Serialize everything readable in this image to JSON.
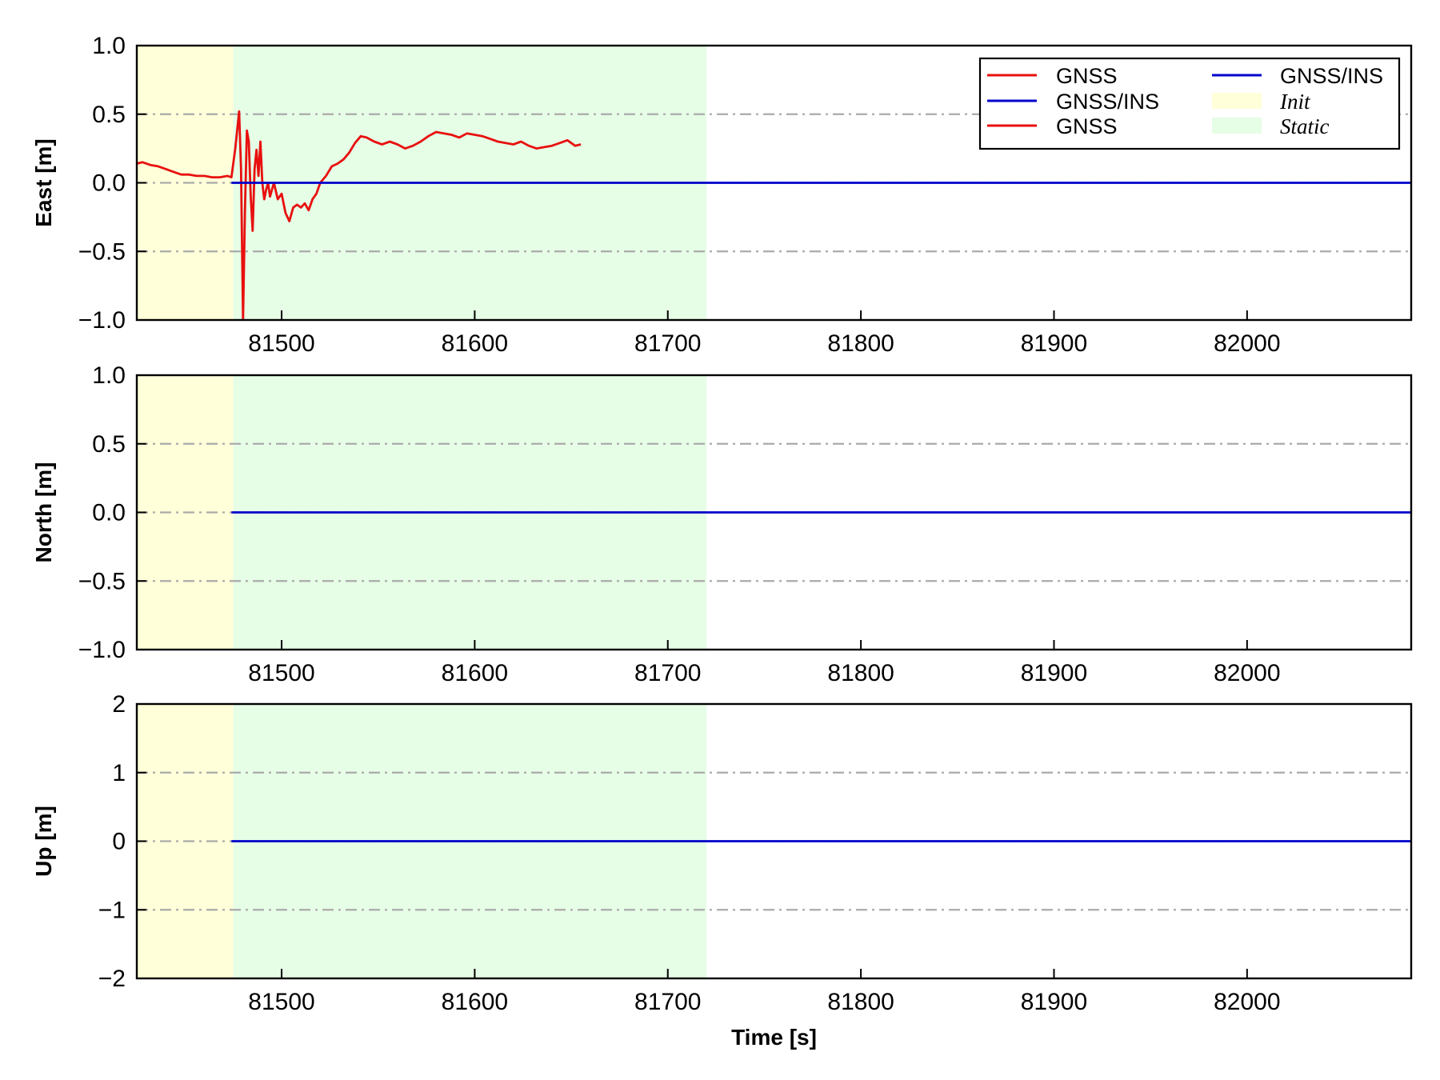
{
  "chart_data": [
    {
      "type": "line",
      "ylabel": "East [m]",
      "xlabel": "",
      "xlim": [
        81425,
        82085
      ],
      "ylim": [
        -1.0,
        1.0
      ],
      "xticks": [
        81500,
        81600,
        81700,
        81800,
        81900,
        82000
      ],
      "xtick_labels": [
        "81500",
        "81600",
        "81700",
        "81800",
        "81900",
        "82000"
      ],
      "yticks": [
        -1.0,
        -0.5,
        0.0,
        0.5,
        1.0
      ],
      "ytick_labels": [
        "−1.0",
        "−0.5",
        "0.0",
        "0.5",
        "1.0"
      ],
      "grid": true,
      "legend_position": "top-right",
      "spans": [
        {
          "name": "Init",
          "start": 81425,
          "end": 81475,
          "color": "#ffffd9"
        },
        {
          "name": "Static",
          "start": 81475,
          "end": 81720,
          "color": "#e6fde6"
        }
      ],
      "legend": [
        {
          "label": "GNSS",
          "kind": "line",
          "color": "#e8100f"
        },
        {
          "label": "GNSS/INS",
          "kind": "line",
          "color": "#0000cc"
        },
        {
          "label": "GNSS",
          "kind": "line",
          "color": "#e8100f"
        },
        {
          "label": "GNSS/INS",
          "kind": "line",
          "color": "#0000cc"
        },
        {
          "label": "Init",
          "kind": "patch",
          "color": "#ffffd9"
        },
        {
          "label": "Static",
          "kind": "patch",
          "color": "#e6fde6"
        }
      ],
      "series": [
        {
          "name": "GNSS",
          "color": "#e8100f",
          "x": [
            81425,
            81428,
            81432,
            81436,
            81440,
            81444,
            81448,
            81452,
            81456,
            81460,
            81464,
            81468,
            81472,
            81474,
            81476,
            81478,
            81479,
            81480,
            81481,
            81482,
            81483,
            81484,
            81485,
            81486,
            81487,
            81488,
            81489,
            81490,
            81491,
            81492,
            81493,
            81494,
            81496,
            81498,
            81500,
            81502,
            81504,
            81506,
            81508,
            81510,
            81512,
            81514,
            81516,
            81518,
            81520,
            81523,
            81526,
            81529,
            81532,
            81535,
            81538,
            81541,
            81544,
            81548,
            81552,
            81556,
            81560,
            81564,
            81568,
            81572,
            81576,
            81580,
            81584,
            81588,
            81592,
            81596,
            81600,
            81604,
            81608,
            81612,
            81616,
            81620,
            81624,
            81628,
            81632,
            81636,
            81640,
            81644,
            81648,
            81652,
            81655
          ],
          "y": [
            0.14,
            0.15,
            0.13,
            0.12,
            0.1,
            0.08,
            0.06,
            0.06,
            0.05,
            0.05,
            0.04,
            0.04,
            0.05,
            0.04,
            0.25,
            0.52,
            0.1,
            -1.0,
            -0.2,
            0.38,
            0.3,
            -0.1,
            -0.35,
            0.1,
            0.24,
            0.05,
            0.3,
            0.0,
            -0.12,
            -0.05,
            0.0,
            -0.1,
            0.0,
            -0.12,
            -0.08,
            -0.22,
            -0.28,
            -0.18,
            -0.16,
            -0.18,
            -0.15,
            -0.2,
            -0.12,
            -0.08,
            0.0,
            0.05,
            0.12,
            0.14,
            0.17,
            0.22,
            0.29,
            0.34,
            0.33,
            0.3,
            0.28,
            0.3,
            0.28,
            0.25,
            0.27,
            0.3,
            0.34,
            0.37,
            0.36,
            0.35,
            0.33,
            0.36,
            0.35,
            0.34,
            0.32,
            0.3,
            0.29,
            0.28,
            0.3,
            0.27,
            0.25,
            0.26,
            0.27,
            0.29,
            0.31,
            0.27,
            0.28
          ]
        },
        {
          "name": "GNSS/INS",
          "color": "#0000cc",
          "x": [
            81474,
            82085
          ],
          "y": [
            0.0,
            0.0
          ]
        }
      ]
    },
    {
      "type": "line",
      "ylabel": "North [m]",
      "xlabel": "",
      "xlim": [
        81425,
        82085
      ],
      "ylim": [
        -1.0,
        1.0
      ],
      "xticks": [
        81500,
        81600,
        81700,
        81800,
        81900,
        82000
      ],
      "xtick_labels": [
        "81500",
        "81600",
        "81700",
        "81800",
        "81900",
        "82000"
      ],
      "yticks": [
        -1.0,
        -0.5,
        0.0,
        0.5,
        1.0
      ],
      "ytick_labels": [
        "−1.0",
        "−0.5",
        "0.0",
        "0.5",
        "1.0"
      ],
      "grid": true,
      "spans": [
        {
          "name": "Init",
          "start": 81425,
          "end": 81475,
          "color": "#ffffd9"
        },
        {
          "name": "Static",
          "start": 81475,
          "end": 81720,
          "color": "#e6fde6"
        }
      ],
      "series": [
        {
          "name": "GNSS/INS",
          "color": "#0000cc",
          "x": [
            81474,
            82085
          ],
          "y": [
            0.0,
            0.0
          ]
        }
      ]
    },
    {
      "type": "line",
      "ylabel": "Up [m]",
      "xlabel": "Time [s]",
      "xlim": [
        81425,
        82085
      ],
      "ylim": [
        -2,
        2
      ],
      "xticks": [
        81500,
        81600,
        81700,
        81800,
        81900,
        82000
      ],
      "xtick_labels": [
        "81500",
        "81600",
        "81700",
        "81800",
        "81900",
        "82000"
      ],
      "yticks": [
        -2,
        -1,
        0,
        1,
        2
      ],
      "ytick_labels": [
        "−2",
        "−1",
        "0",
        "1",
        "2"
      ],
      "grid": true,
      "spans": [
        {
          "name": "Init",
          "start": 81425,
          "end": 81475,
          "color": "#ffffd9"
        },
        {
          "name": "Static",
          "start": 81475,
          "end": 81720,
          "color": "#e6fde6"
        }
      ],
      "series": [
        {
          "name": "GNSS/INS",
          "color": "#0000cc",
          "x": [
            81474,
            82085
          ],
          "y": [
            0,
            0
          ]
        }
      ]
    }
  ]
}
